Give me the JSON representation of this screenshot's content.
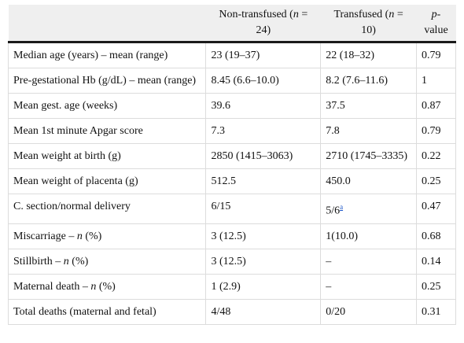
{
  "header": {
    "col1": "",
    "col2_pre": "Non-transfused (",
    "col2_n": "n",
    "col2_post": " = 24)",
    "col3_pre": "Transfused (",
    "col3_n": "n",
    "col3_post": " = 10)",
    "col4_p": "p",
    "col4_post": "-value"
  },
  "rows": [
    {
      "label": "Median age (years) – mean (range)",
      "non": "23 (19–37)",
      "trans": "22 (18–32)",
      "p": "0.79"
    },
    {
      "label": "Pre-gestational Hb (g/dL) – mean (range)",
      "non": "8.45 (6.6–10.0)",
      "trans": "8.2 (7.6–11.6)",
      "p": "1"
    },
    {
      "label": "Mean gest. age (weeks)",
      "non": "39.6",
      "trans": "37.5",
      "p": "0.87"
    },
    {
      "label": "Mean 1st minute Apgar score",
      "non": "7.3",
      "trans": "7.8",
      "p": "0.79"
    },
    {
      "label": "Mean weight at birth (g)",
      "non": "2850 (1415–3063)",
      "trans": "2710 (1745–3335)",
      "p": "0.22"
    },
    {
      "label": "Mean weight of placenta (g)",
      "non": "512.5",
      "trans": "450.0",
      "p": "0.25"
    },
    {
      "label": "C. section/normal delivery",
      "non": "6/15",
      "trans": "5/6",
      "trans_note": "a",
      "p": "0.47"
    },
    {
      "label_pre": "Miscarriage – ",
      "label_n": "n",
      "label_post": " (%)",
      "non": "3 (12.5)",
      "trans": "1(10.0)",
      "p": "0.68"
    },
    {
      "label_pre": "Stillbirth – ",
      "label_n": "n",
      "label_post": " (%)",
      "non": "3 (12.5)",
      "trans": "–",
      "p": "0.14"
    },
    {
      "label_pre": "Maternal death – ",
      "label_n": "n",
      "label_post": " (%)",
      "non": "1 (2.9)",
      "trans": "–",
      "p": "0.25"
    },
    {
      "label": "Total deaths (maternal and fetal)",
      "non": "4/48",
      "trans": "0/20",
      "p": "0.31"
    }
  ]
}
